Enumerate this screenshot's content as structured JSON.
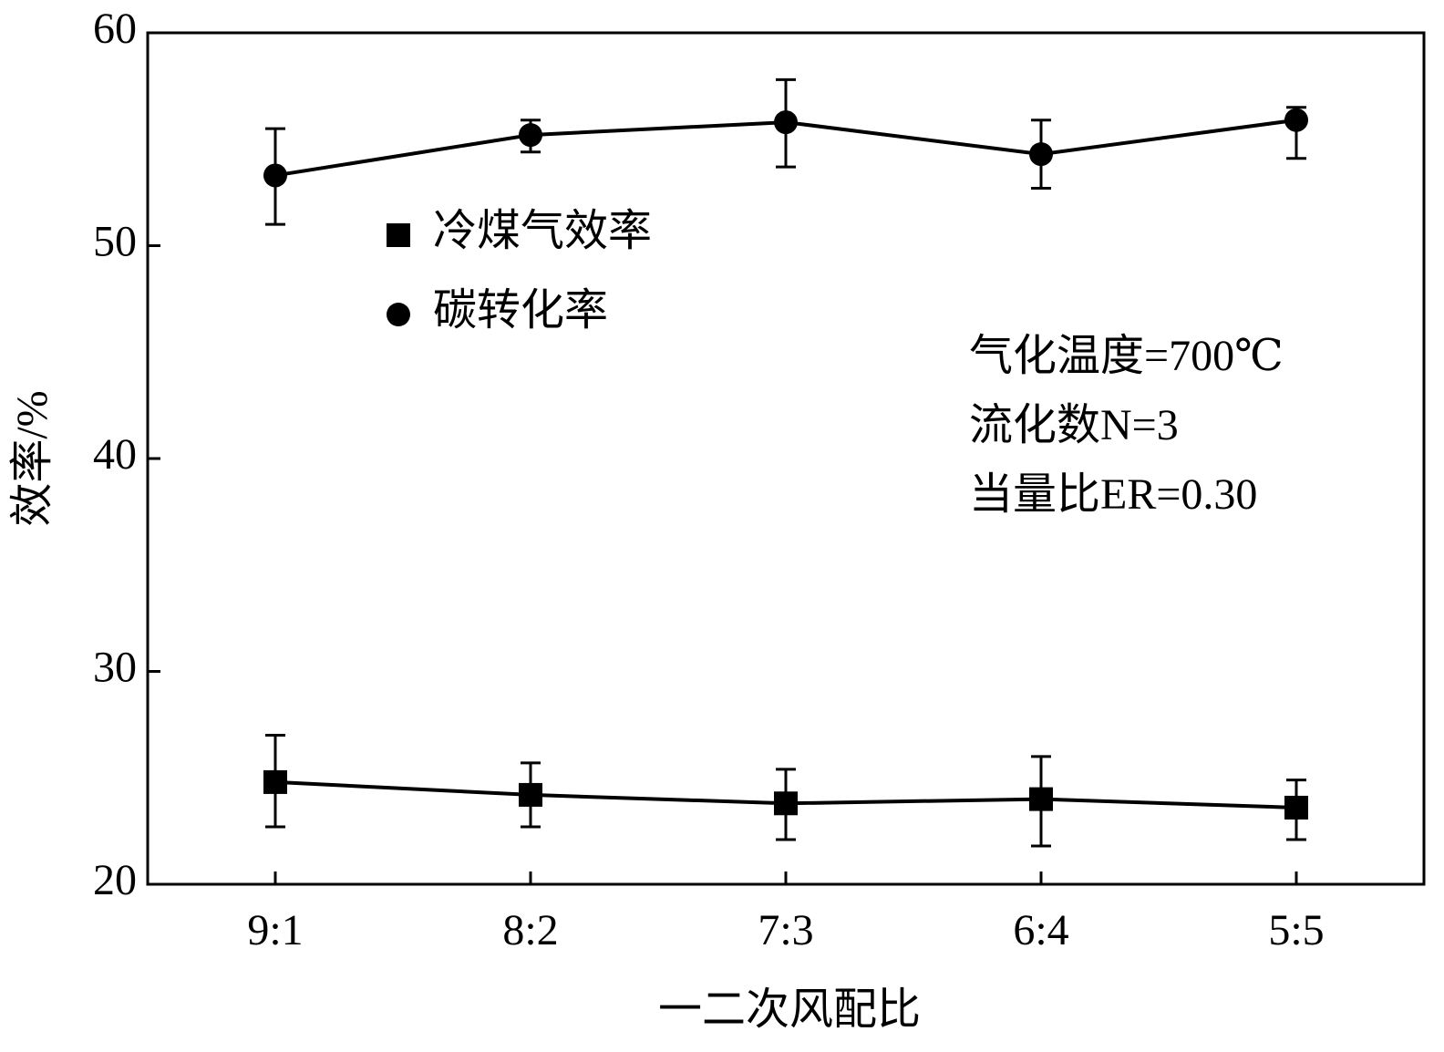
{
  "chart_data": {
    "type": "line",
    "categories": [
      "9:1",
      "8:2",
      "7:3",
      "6:4",
      "5:5"
    ],
    "x_label": "一二次风配比",
    "y_label": "效率/%",
    "ylim": [
      20,
      60
    ],
    "yticks": [
      20,
      30,
      40,
      50,
      60
    ],
    "series": [
      {
        "name": "冷煤气效率",
        "color": "#000000",
        "marker": "square",
        "values": [
          24.8,
          24.2,
          23.8,
          24.0,
          23.6
        ],
        "err_plus": [
          2.2,
          1.5,
          1.6,
          2.0,
          1.3
        ],
        "err_minus": [
          2.1,
          1.5,
          1.7,
          2.2,
          1.5
        ]
      },
      {
        "name": "碳转化率",
        "color": "#000000",
        "marker": "circle",
        "values": [
          53.3,
          55.2,
          55.8,
          54.3,
          55.9
        ],
        "err_plus": [
          2.2,
          0.7,
          2.0,
          1.6,
          0.6
        ],
        "err_minus": [
          2.3,
          0.8,
          2.1,
          1.6,
          1.8
        ]
      }
    ],
    "annotations": [
      "气化温度=700℃",
      "流化数N=3",
      "当量比ER=0.30"
    ]
  }
}
